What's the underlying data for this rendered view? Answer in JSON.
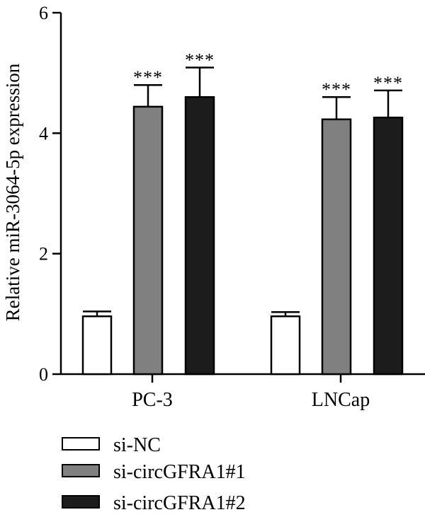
{
  "chart_data": {
    "type": "bar",
    "ylabel": "Relative miR-3064-5p expression",
    "ylim": [
      0,
      6
    ],
    "yticks": [
      0,
      2,
      4,
      6
    ],
    "categories": [
      "PC-3",
      "LNCap"
    ],
    "series": [
      {
        "name": "si-NC",
        "color": "#ffffff",
        "values": [
          0.96,
          0.96
        ],
        "errors": [
          0.08,
          0.07
        ],
        "significance": [
          "",
          ""
        ]
      },
      {
        "name": "si-circGFRA1#1",
        "color": "#808080",
        "values": [
          4.44,
          4.23
        ],
        "errors": [
          0.36,
          0.37
        ],
        "significance": [
          "***",
          "***"
        ]
      },
      {
        "name": "si-circGFRA1#2",
        "color": "#1c1c1c",
        "values": [
          4.6,
          4.26
        ],
        "errors": [
          0.49,
          0.45
        ],
        "significance": [
          "***",
          "***"
        ]
      }
    ],
    "legend_position": "bottom-left"
  }
}
